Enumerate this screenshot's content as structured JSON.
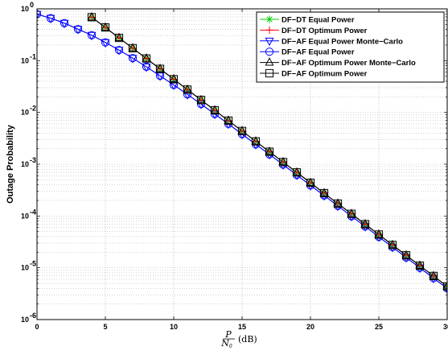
{
  "chart_data": {
    "type": "line",
    "title": "",
    "xlabel": "(dB)",
    "xlabel_fraction": {
      "numerator": "P",
      "denominator": "N",
      "denominator_sub": "0"
    },
    "ylabel": "Outage Probability",
    "xlim": [
      0,
      30
    ],
    "ylim": [
      1e-06,
      1
    ],
    "yscale": "log",
    "grid": true,
    "legend_position": "top-right",
    "x_ticks": [
      "0",
      "5",
      "10",
      "15",
      "20",
      "25",
      "30"
    ],
    "y_ticks": [
      {
        "base": "10",
        "exp": "0"
      },
      {
        "base": "10",
        "exp": "-1"
      },
      {
        "base": "10",
        "exp": "-2"
      },
      {
        "base": "10",
        "exp": "-3"
      },
      {
        "base": "10",
        "exp": "-4"
      },
      {
        "base": "10",
        "exp": "-5"
      },
      {
        "base": "10",
        "exp": "-6"
      }
    ],
    "series": [
      {
        "name": "DF−DT Equal Power",
        "marker": "asterisk",
        "color": "#00cc00",
        "x": [
          4,
          5,
          6,
          7,
          8,
          9,
          10,
          11,
          12,
          13,
          14,
          15,
          16,
          17,
          18,
          19,
          20,
          21,
          22,
          23,
          24,
          25,
          26,
          27,
          28,
          29,
          30
        ],
        "y": [
          0.69,
          0.437,
          0.275,
          0.174,
          0.11,
          0.0694,
          0.0438,
          0.0276,
          0.0174,
          0.011,
          0.00694,
          0.00438,
          0.00276,
          0.00174,
          0.0011,
          0.000694,
          0.000438,
          0.000276,
          0.000174,
          0.00011,
          6.94e-05,
          4.38e-05,
          2.76e-05,
          1.74e-05,
          1.1e-05,
          6.94e-06,
          4.38e-06
        ]
      },
      {
        "name": "DF−DT Optimum Power",
        "marker": "plus",
        "color": "#ff0000",
        "x": [
          4,
          5,
          6,
          7,
          8,
          9,
          10,
          11,
          12,
          13,
          14,
          15,
          16,
          17,
          18,
          19,
          20,
          21,
          22,
          23,
          24,
          25,
          26,
          27,
          28,
          29,
          30
        ],
        "y": [
          0.69,
          0.437,
          0.275,
          0.174,
          0.11,
          0.0694,
          0.0438,
          0.0276,
          0.0174,
          0.011,
          0.00694,
          0.00438,
          0.00276,
          0.00174,
          0.0011,
          0.000694,
          0.000438,
          0.000276,
          0.000174,
          0.00011,
          6.94e-05,
          4.38e-05,
          2.76e-05,
          1.74e-05,
          1.1e-05,
          6.94e-06,
          4.38e-06
        ]
      },
      {
        "name": "DF−AF Equal Power Monte−Carlo",
        "marker": "triangle-down",
        "color": "#0000ff",
        "x": [
          0,
          1,
          2,
          3,
          4,
          5,
          6,
          7,
          8,
          9,
          10,
          11,
          12,
          13,
          14,
          15,
          16,
          17,
          18,
          19,
          20,
          21,
          22,
          23,
          24,
          25,
          26,
          27,
          28,
          29,
          30
        ],
        "y": [
          0.79,
          0.66,
          0.53,
          0.405,
          0.31,
          0.225,
          0.16,
          0.112,
          0.076,
          0.051,
          0.034,
          0.0223,
          0.0145,
          0.0093,
          0.006,
          0.0038,
          0.00242,
          0.00155,
          0.00098,
          0.00062,
          0.00039,
          0.000249,
          0.000157,
          9.9e-05,
          6.3e-05,
          3.95e-05,
          2.5e-05,
          1.58e-05,
          1e-05,
          6.3e-06,
          4e-06
        ]
      },
      {
        "name": "DF−AF Equal Power",
        "marker": "circle",
        "color": "#0000ff",
        "x": [
          0,
          1,
          2,
          3,
          4,
          5,
          6,
          7,
          8,
          9,
          10,
          11,
          12,
          13,
          14,
          15,
          16,
          17,
          18,
          19,
          20,
          21,
          22,
          23,
          24,
          25,
          26,
          27,
          28,
          29,
          30
        ],
        "y": [
          0.79,
          0.66,
          0.53,
          0.405,
          0.31,
          0.225,
          0.16,
          0.112,
          0.076,
          0.051,
          0.034,
          0.0223,
          0.0145,
          0.0093,
          0.006,
          0.0038,
          0.00242,
          0.00155,
          0.00098,
          0.00062,
          0.00039,
          0.000249,
          0.000157,
          9.9e-05,
          6.3e-05,
          3.95e-05,
          2.5e-05,
          1.58e-05,
          1e-05,
          6.3e-06,
          4e-06
        ]
      },
      {
        "name": "DF−AF Optimum Power Monte−Carlo",
        "marker": "triangle-up",
        "color": "#000000",
        "x": [
          4,
          5,
          6,
          7,
          8,
          9,
          10,
          11,
          12,
          13,
          14,
          15,
          16,
          17,
          18,
          19,
          20,
          21,
          22,
          23,
          24,
          25,
          26,
          27,
          28,
          29,
          30
        ],
        "y": [
          0.69,
          0.437,
          0.275,
          0.174,
          0.11,
          0.0694,
          0.0438,
          0.0276,
          0.0174,
          0.011,
          0.00694,
          0.00438,
          0.00276,
          0.00174,
          0.0011,
          0.000694,
          0.000438,
          0.000276,
          0.000174,
          0.00011,
          6.94e-05,
          4.38e-05,
          2.76e-05,
          1.74e-05,
          1.1e-05,
          6.94e-06,
          4.38e-06
        ]
      },
      {
        "name": "DF−AF Optimum Power",
        "marker": "square",
        "color": "#000000",
        "x": [
          4,
          5,
          6,
          7,
          8,
          9,
          10,
          11,
          12,
          13,
          14,
          15,
          16,
          17,
          18,
          19,
          20,
          21,
          22,
          23,
          24,
          25,
          26,
          27,
          28,
          29,
          30
        ],
        "y": [
          0.69,
          0.437,
          0.275,
          0.174,
          0.11,
          0.0694,
          0.0438,
          0.0276,
          0.0174,
          0.011,
          0.00694,
          0.00438,
          0.00276,
          0.00174,
          0.0011,
          0.000694,
          0.000438,
          0.000276,
          0.000174,
          0.00011,
          6.94e-05,
          4.38e-05,
          2.76e-05,
          1.74e-05,
          1.1e-05,
          6.94e-06,
          4.38e-06
        ]
      }
    ]
  }
}
